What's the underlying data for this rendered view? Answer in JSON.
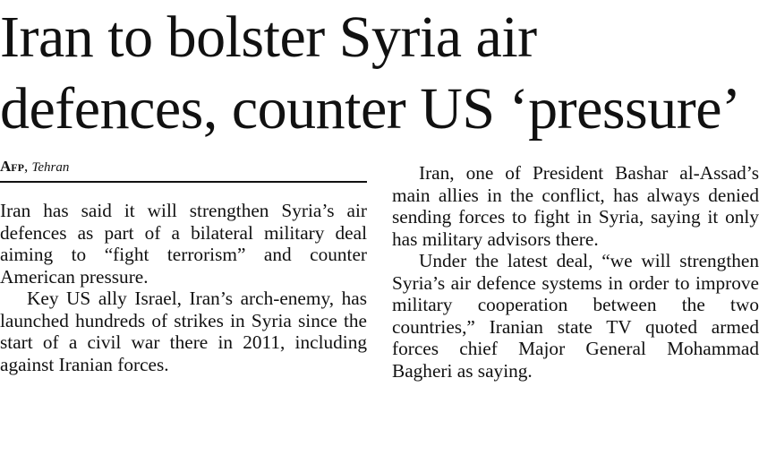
{
  "headline": "Iran to bolster Syria air defences, counter US ‘pressure’",
  "byline": {
    "agency": "Afp",
    "place": "Tehran"
  },
  "left_column": [
    "Iran has said it will strengthen Syria’s air defences as part of a bilateral military deal aiming to “fight terrorism” and counter American pressure.",
    "Key US ally Israel, Iran’s arch-enemy, has launched hundreds of strikes in Syria since the start of a civil war there in 2011, including against Iranian forces."
  ],
  "right_column": [
    "Iran, one of President Bashar al-Assad’s main allies in the conflict, has always denied sending forces to fight in Syria, saying it only has military advisors there.",
    "Under the latest deal, “we will strengthen Syria’s air defence systems in order to improve military cooperation between the two countries,” Iranian state TV quoted armed forces chief Major General Mohammad Bagheri as saying."
  ]
}
